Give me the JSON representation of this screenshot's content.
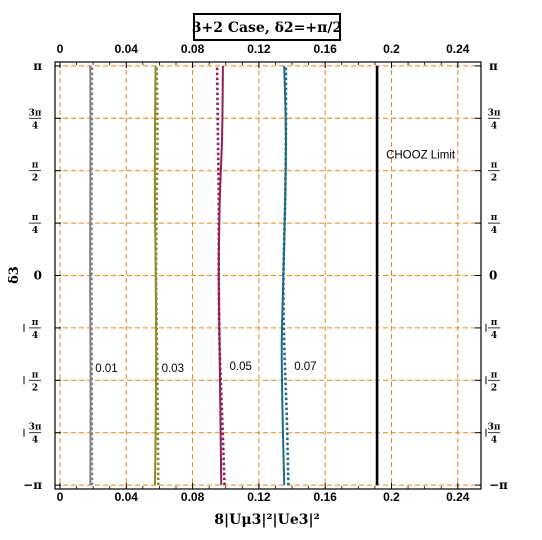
{
  "chart_data": {
    "type": "line",
    "title": "3+2 Case, δ2=+π/2",
    "xlabel": "8|Uμ3|²|Ue3|²",
    "ylabel": "δ3",
    "xlim": [
      -0.003,
      0.254
    ],
    "ylim": [
      -3.2,
      3.2
    ],
    "x_ticks": [
      0,
      0.04,
      0.08,
      0.12,
      0.16,
      0.2,
      0.24
    ],
    "x_tick_labels": [
      "0",
      "0.04",
      "0.08",
      "0.12",
      "0.16",
      "0.2",
      "0.24"
    ],
    "y_ticks": [
      {
        "value": -3.14159,
        "label": "−π"
      },
      {
        "value": -2.35619,
        "label": "−3π/4"
      },
      {
        "value": -1.5708,
        "label": "−π/2"
      },
      {
        "value": -0.7854,
        "label": "−π/4"
      },
      {
        "value": 0,
        "label": "0"
      },
      {
        "value": 0.7854,
        "label": "π/4"
      },
      {
        "value": 1.5708,
        "label": "π/2"
      },
      {
        "value": 2.35619,
        "label": "3π/4"
      },
      {
        "value": 3.14159,
        "label": "π"
      }
    ],
    "grid": true,
    "grid_color": "#e08a1e",
    "series": [
      {
        "level": "0.01",
        "color": "#808080",
        "style": "solid",
        "x": [
          0.0183,
          0.0185,
          0.0184,
          0.0182,
          0.0183,
          0.0184,
          0.0183
        ],
        "y": [
          -3.14159,
          -2.094,
          -1.047,
          0,
          1.047,
          2.094,
          3.14159
        ]
      },
      {
        "level": "0.01",
        "color": "#808080",
        "style": "dotted",
        "x": [
          0.0193,
          0.0192,
          0.0191,
          0.019,
          0.019,
          0.0192,
          0.0193
        ],
        "y": [
          -3.14159,
          -2.094,
          -1.047,
          0,
          1.047,
          2.094,
          3.14159
        ]
      },
      {
        "level": "0.03",
        "color": "#8b8b2a",
        "style": "solid",
        "x": [
          0.0573,
          0.0578,
          0.058,
          0.0578,
          0.0573,
          0.0573,
          0.0577
        ],
        "y": [
          -3.14159,
          -2.094,
          -1.047,
          0,
          1.047,
          2.094,
          3.14159
        ]
      },
      {
        "level": "0.03",
        "color": "#8b8b2a",
        "style": "dotted",
        "x": [
          0.0593,
          0.059,
          0.0585,
          0.058,
          0.0583,
          0.0588,
          0.0583
        ],
        "y": [
          -3.14159,
          -2.094,
          -1.047,
          0,
          1.047,
          2.094,
          3.14159
        ]
      },
      {
        "level": "0.05",
        "color": "#8e1e5e",
        "style": "solid",
        "x": [
          0.0973,
          0.0968,
          0.0963,
          0.0958,
          0.0963,
          0.0978,
          0.0983
        ],
        "y": [
          -3.14159,
          -2.094,
          -1.047,
          0,
          1.047,
          2.094,
          3.14159
        ]
      },
      {
        "level": "0.05",
        "color": "#8e1e5e",
        "style": "dotted",
        "x": [
          0.0993,
          0.0978,
          0.0963,
          0.0958,
          0.0958,
          0.0953,
          0.0948
        ],
        "y": [
          -3.14159,
          -2.094,
          -1.047,
          0,
          1.047,
          2.094,
          3.14159
        ]
      },
      {
        "level": "0.07",
        "color": "#1d6a87",
        "style": "solid",
        "x": [
          0.1353,
          0.1343,
          0.1338,
          0.1348,
          0.1358,
          0.1363,
          0.1353
        ],
        "y": [
          -3.14159,
          -2.094,
          -1.047,
          0,
          1.047,
          2.094,
          3.14159
        ]
      },
      {
        "level": "0.07",
        "color": "#1d6a87",
        "style": "dotted",
        "x": [
          0.1378,
          0.1368,
          0.1353,
          0.1348,
          0.1358,
          0.1363,
          0.1363
        ],
        "y": [
          -3.14159,
          -2.094,
          -1.047,
          0,
          1.047,
          2.094,
          3.14159
        ]
      }
    ],
    "contour_labels": [
      {
        "text": "0.01",
        "x": 0.0213,
        "y": -1.45
      },
      {
        "text": "0.03",
        "x": 0.0613,
        "y": -1.45
      },
      {
        "text": "0.05",
        "x": 0.1023,
        "y": -1.42
      },
      {
        "text": "0.07",
        "x": 0.1413,
        "y": -1.42
      }
    ],
    "limit_line": {
      "label": "CHOOZ Limit",
      "x": 0.1913,
      "color": "#000000",
      "label_at": {
        "x": 0.1913,
        "y": 1.75
      }
    }
  }
}
